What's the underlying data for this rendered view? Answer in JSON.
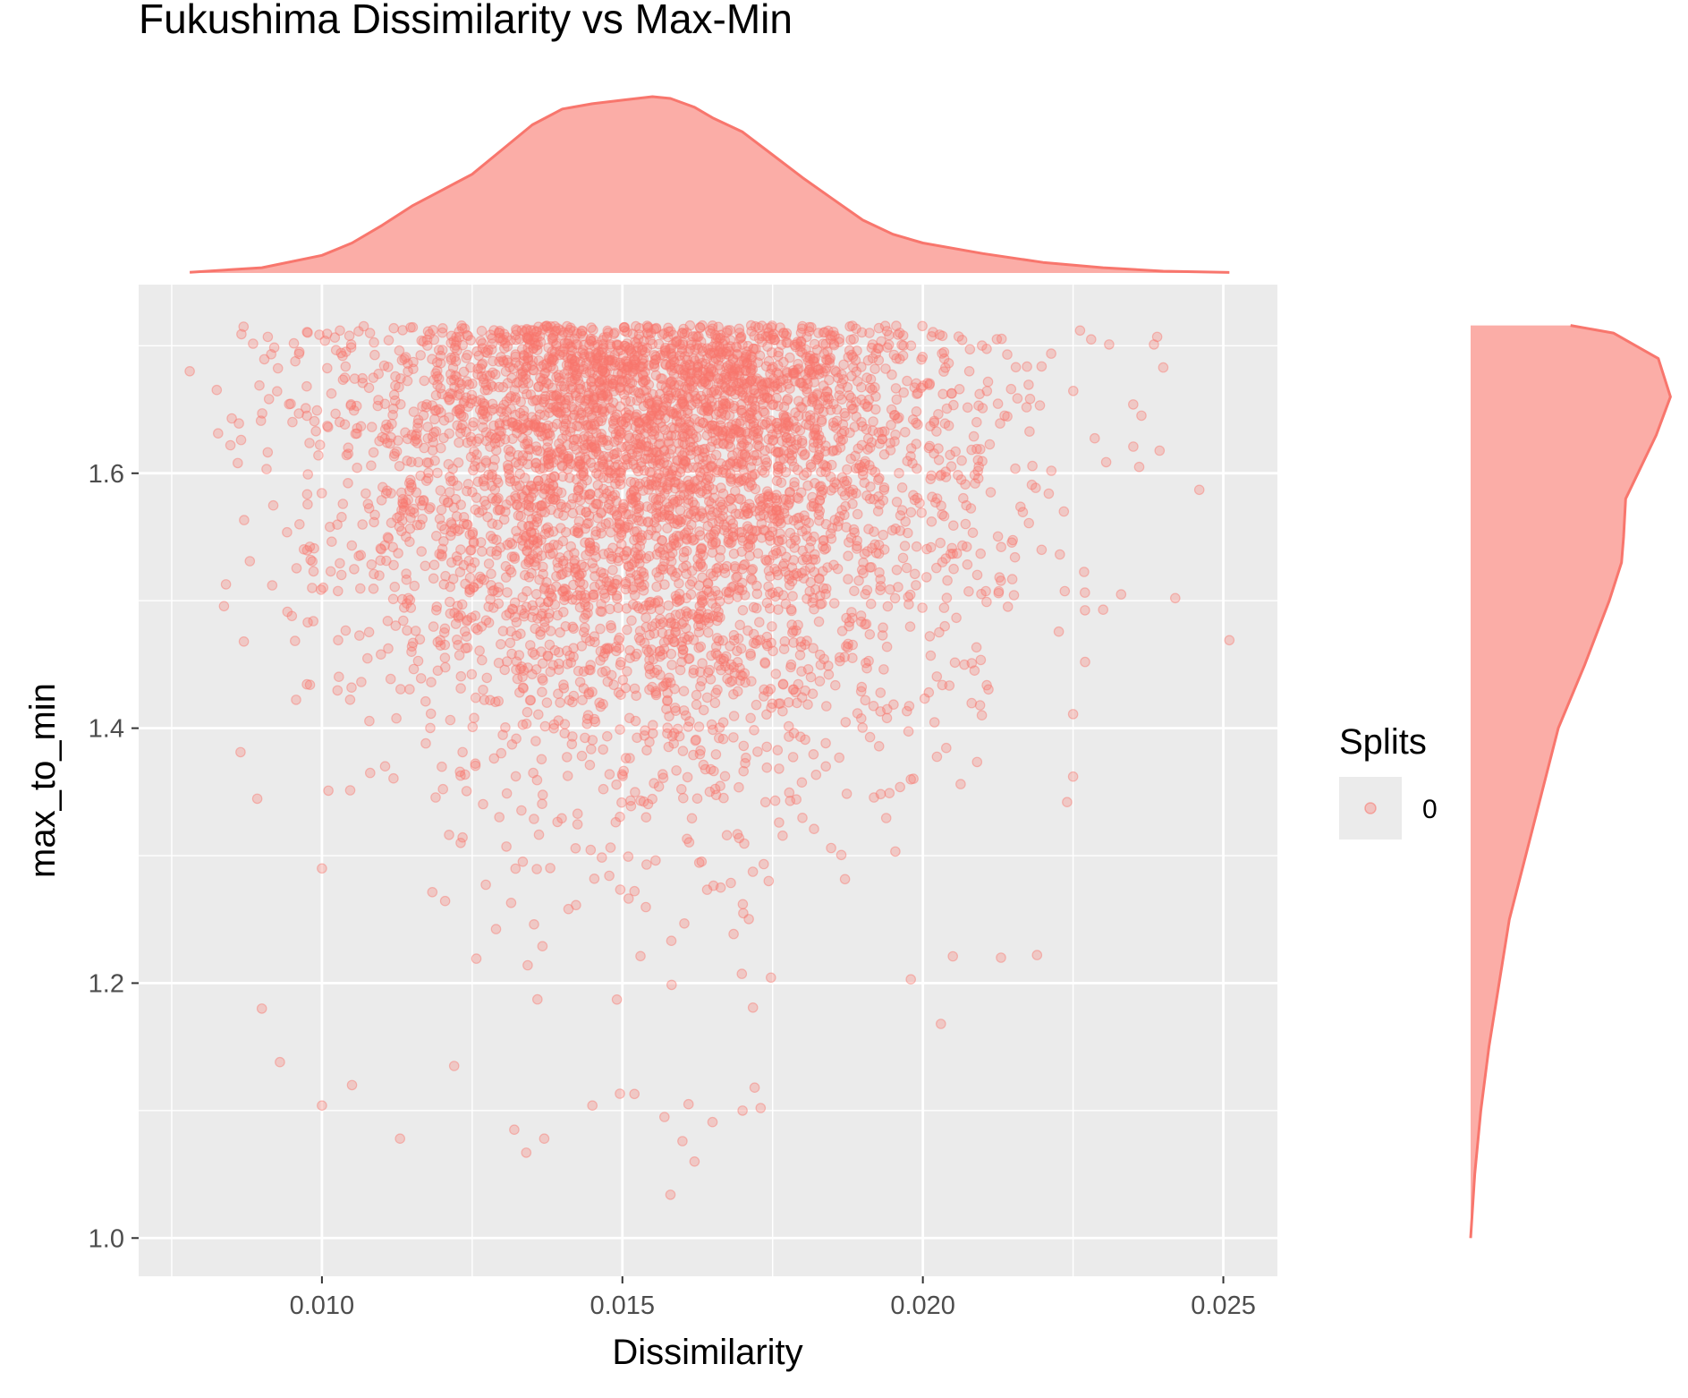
{
  "chart_data": {
    "type": "scatter",
    "title": "Fukushima Dissimilarity vs Max-Min",
    "xlabel": "Dissimilarity",
    "ylabel": "max_to_min",
    "xlim": [
      0.00695,
      0.0259
    ],
    "ylim": [
      0.97,
      1.748
    ],
    "x_ticks": [
      0.01,
      0.015,
      0.02,
      0.025
    ],
    "x_tick_labels": [
      "0.010",
      "0.015",
      "0.020",
      "0.025"
    ],
    "y_ticks": [
      1.0,
      1.2,
      1.4,
      1.6
    ],
    "y_tick_labels": [
      "1.0",
      "1.2",
      "1.4",
      "1.6"
    ],
    "grid": true,
    "legend": {
      "title": "Splits",
      "placement": "right",
      "entries": [
        {
          "label": "0",
          "color": "#F8766D"
        }
      ]
    },
    "series": [
      {
        "label": "0",
        "color": "#F8766D",
        "n_points": 5000,
        "description_x": "x approximately normal, mean 0.0155, sd 0.0026, range 0.0078 to 0.0251",
        "y_max": 1.716,
        "y_min": 1.033,
        "points": [
          [
            0.0078,
            1.68
          ],
          [
            0.0085,
            1.643
          ],
          [
            0.0086,
            1.608
          ],
          [
            0.0087,
            1.468
          ],
          [
            0.0088,
            1.531
          ],
          [
            0.0091,
            1.707
          ],
          [
            0.0093,
            1.138
          ],
          [
            0.009,
            1.18
          ],
          [
            0.0095,
            1.488
          ],
          [
            0.0098,
            1.434
          ],
          [
            0.01,
            1.104
          ],
          [
            0.0099,
            1.633
          ],
          [
            0.01,
            1.29
          ],
          [
            0.0103,
            1.712
          ],
          [
            0.0105,
            1.12
          ],
          [
            0.0108,
            1.71
          ],
          [
            0.0113,
            1.078
          ],
          [
            0.0122,
            1.135
          ],
          [
            0.0132,
            1.085
          ],
          [
            0.0134,
            1.067
          ],
          [
            0.0137,
            1.078
          ],
          [
            0.0145,
            1.104
          ],
          [
            0.0152,
            1.113
          ],
          [
            0.0157,
            1.095
          ],
          [
            0.016,
            1.076
          ],
          [
            0.0161,
            1.105
          ],
          [
            0.0165,
            1.091
          ],
          [
            0.017,
            1.1
          ],
          [
            0.0172,
            1.118
          ],
          [
            0.0173,
            1.102
          ],
          [
            0.0162,
            1.06
          ],
          [
            0.0158,
            1.034
          ],
          [
            0.0198,
            1.203
          ],
          [
            0.0203,
            1.168
          ],
          [
            0.0205,
            1.221
          ],
          [
            0.0213,
            1.22
          ],
          [
            0.0219,
            1.222
          ],
          [
            0.0224,
            1.342
          ],
          [
            0.0225,
            1.362
          ],
          [
            0.0225,
            1.411
          ],
          [
            0.0227,
            1.452
          ],
          [
            0.023,
            1.493
          ],
          [
            0.0233,
            1.505
          ],
          [
            0.0236,
            1.605
          ],
          [
            0.0239,
            1.707
          ],
          [
            0.0242,
            1.502
          ],
          [
            0.0246,
            1.587
          ],
          [
            0.0251,
            1.469
          ],
          [
            0.024,
            1.683
          ],
          [
            0.0235,
            1.654
          ],
          [
            0.0228,
            1.705
          ],
          [
            0.0231,
            1.701
          ]
        ]
      }
    ],
    "marginal_top": {
      "type": "density",
      "variable": "Dissimilarity",
      "x": [
        0.0078,
        0.009,
        0.01,
        0.0105,
        0.011,
        0.0115,
        0.012,
        0.0125,
        0.013,
        0.0135,
        0.014,
        0.0145,
        0.015,
        0.0155,
        0.0158,
        0.0162,
        0.0165,
        0.017,
        0.0175,
        0.018,
        0.0185,
        0.019,
        0.0195,
        0.02,
        0.021,
        0.022,
        0.023,
        0.024,
        0.0251
      ],
      "density": [
        0.004,
        0.03,
        0.1,
        0.17,
        0.27,
        0.38,
        0.47,
        0.56,
        0.7,
        0.84,
        0.93,
        0.96,
        0.98,
        1.0,
        0.99,
        0.94,
        0.88,
        0.8,
        0.67,
        0.54,
        0.42,
        0.3,
        0.22,
        0.17,
        0.11,
        0.06,
        0.03,
        0.01,
        0.003
      ]
    },
    "marginal_right": {
      "type": "density",
      "variable": "max_to_min",
      "y": [
        1.0,
        1.05,
        1.1,
        1.15,
        1.2,
        1.25,
        1.3,
        1.35,
        1.4,
        1.45,
        1.5,
        1.53,
        1.55,
        1.58,
        1.6,
        1.63,
        1.66,
        1.69,
        1.71,
        1.716
      ],
      "density": [
        0.0,
        0.02,
        0.05,
        0.09,
        0.14,
        0.19,
        0.27,
        0.35,
        0.43,
        0.56,
        0.68,
        0.74,
        0.75,
        0.76,
        0.82,
        0.91,
        0.98,
        0.92,
        0.7,
        0.49
      ]
    }
  }
}
